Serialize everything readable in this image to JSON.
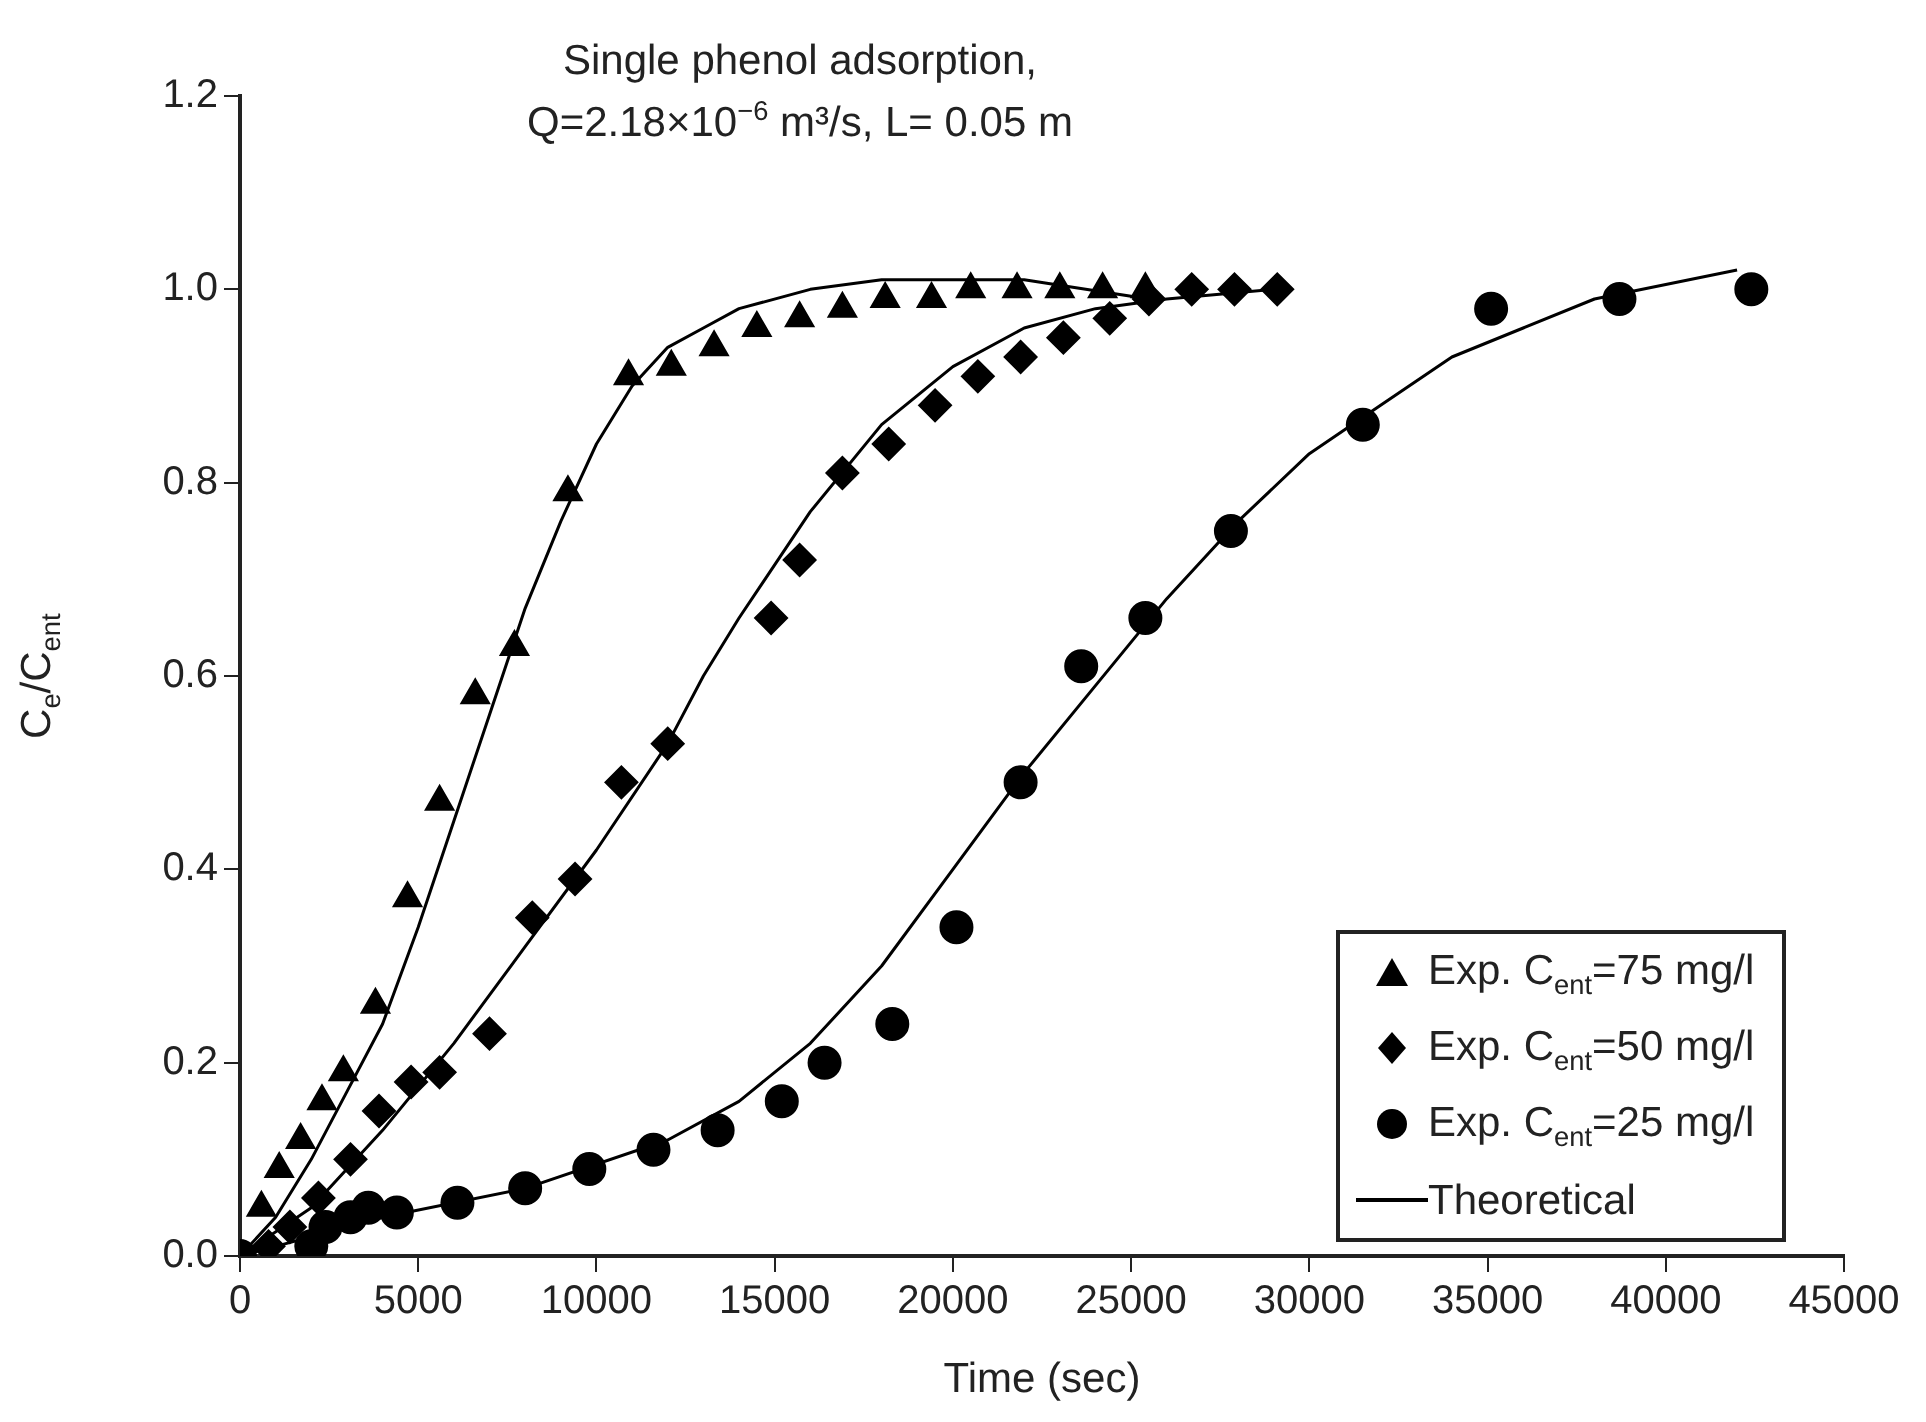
{
  "chart_data": {
    "type": "scatter",
    "title": "Single phenol adsorption,",
    "subtitle": "Q=2.18×10$^{−6}$ m³/s, L= 0.05 m",
    "xlabel": "Time (sec)",
    "ylabel": "C$_{e}$/C$_{ent}$",
    "xlim": [
      0,
      45000
    ],
    "xticks": [
      0,
      5000,
      10000,
      15000,
      20000,
      25000,
      30000,
      35000,
      40000,
      45000
    ],
    "ylim": [
      0,
      1.2
    ],
    "yticks": [
      {
        "value": 0,
        "label": "0.0"
      },
      {
        "value": 0.2,
        "label": "0.2"
      },
      {
        "value": 0.4,
        "label": "0.4"
      },
      {
        "value": 0.6,
        "label": "0.6"
      },
      {
        "value": 0.8,
        "label": "0.8"
      },
      {
        "value": 1,
        "label": "1.0"
      },
      {
        "value": 1.2,
        "label": "1.2"
      }
    ],
    "grid": false,
    "legend": "bottom right",
    "series": [
      {
        "name": "Exp. C$_{ent}$=75 mg/l",
        "type": "scatter",
        "marker": "triangle",
        "color": "#000000",
        "x": [
          600,
          1100,
          1700,
          2300,
          2900,
          3800,
          4700,
          5600,
          6600,
          7700,
          9200,
          10900,
          12100,
          13300,
          14500,
          15700,
          16900,
          18100,
          19400,
          20500,
          21800,
          23000,
          24200,
          25400
        ],
        "values": [
          0.05,
          0.09,
          0.12,
          0.16,
          0.19,
          0.26,
          0.37,
          0.47,
          0.58,
          0.63,
          0.79,
          0.91,
          0.92,
          0.94,
          0.96,
          0.97,
          0.98,
          0.99,
          0.99,
          1.0,
          1.0,
          1.0,
          1.0,
          1.0
        ]
      },
      {
        "name": "Exp. C$_{ent}$=50 mg/l",
        "type": "scatter",
        "marker": "diamond",
        "color": "#000000",
        "x": [
          800,
          1400,
          2200,
          3100,
          3900,
          4800,
          5600,
          7000,
          8200,
          9400,
          10700,
          12000,
          14900,
          15700,
          16900,
          18200,
          19500,
          20700,
          21900,
          23100,
          24400,
          25500,
          26700,
          27900,
          29100
        ],
        "values": [
          0.01,
          0.03,
          0.06,
          0.1,
          0.15,
          0.18,
          0.19,
          0.23,
          0.35,
          0.39,
          0.49,
          0.53,
          0.66,
          0.72,
          0.81,
          0.84,
          0.88,
          0.91,
          0.93,
          0.95,
          0.97,
          0.99,
          1.0,
          1.0,
          1.0
        ]
      },
      {
        "name": "Exp. C$_{ent}$=25 mg/l",
        "type": "scatter",
        "marker": "circle",
        "color": "#000000",
        "x": [
          0,
          2000,
          2400,
          3100,
          3600,
          4400,
          6100,
          8000,
          9800,
          11600,
          13400,
          15200,
          16400,
          18300,
          20100,
          21900,
          23600,
          25400,
          27800,
          31500,
          35100,
          38700,
          42400
        ],
        "values": [
          0,
          0.01,
          0.03,
          0.04,
          0.05,
          0.045,
          0.055,
          0.07,
          0.09,
          0.11,
          0.13,
          0.16,
          0.2,
          0.24,
          0.34,
          0.49,
          0.61,
          0.66,
          0.75,
          0.86,
          0.98,
          0.99,
          1.0
        ]
      },
      {
        "name": "Theoretical",
        "type": "line",
        "marker": "none",
        "color": "#000000",
        "x": [
          0,
          1000,
          2000,
          3000,
          4000,
          5000,
          6000,
          7000,
          8000,
          9000,
          10000,
          11000,
          12000,
          13000,
          14000,
          16000,
          18000,
          20000,
          22000,
          25500
        ],
        "values": [
          0,
          0.04,
          0.1,
          0.17,
          0.24,
          0.34,
          0.45,
          0.56,
          0.67,
          0.76,
          0.84,
          0.9,
          0.94,
          0.96,
          0.98,
          1.0,
          1.01,
          1.01,
          1.01,
          0.99
        ]
      },
      {
        "type": "line",
        "marker": "none",
        "color": "#000000",
        "x": [
          0,
          2000,
          4000,
          6000,
          8000,
          10000,
          12000,
          13000,
          14000,
          16000,
          18000,
          20000,
          22000,
          24000,
          26000,
          29000
        ],
        "values": [
          0,
          0.05,
          0.13,
          0.22,
          0.32,
          0.42,
          0.53,
          0.6,
          0.66,
          0.77,
          0.86,
          0.92,
          0.96,
          0.98,
          0.99,
          1.0
        ]
      },
      {
        "type": "line",
        "marker": "none",
        "color": "#000000",
        "x": [
          0,
          4000,
          8000,
          12000,
          14000,
          16000,
          18000,
          20000,
          22000,
          24000,
          26000,
          28000,
          30000,
          32000,
          34000,
          36000,
          38000,
          40000,
          42000
        ],
        "values": [
          0,
          0.04,
          0.07,
          0.12,
          0.16,
          0.22,
          0.3,
          0.4,
          0.5,
          0.59,
          0.68,
          0.76,
          0.83,
          0.88,
          0.93,
          0.96,
          0.99,
          1.005,
          1.02
        ]
      }
    ]
  }
}
